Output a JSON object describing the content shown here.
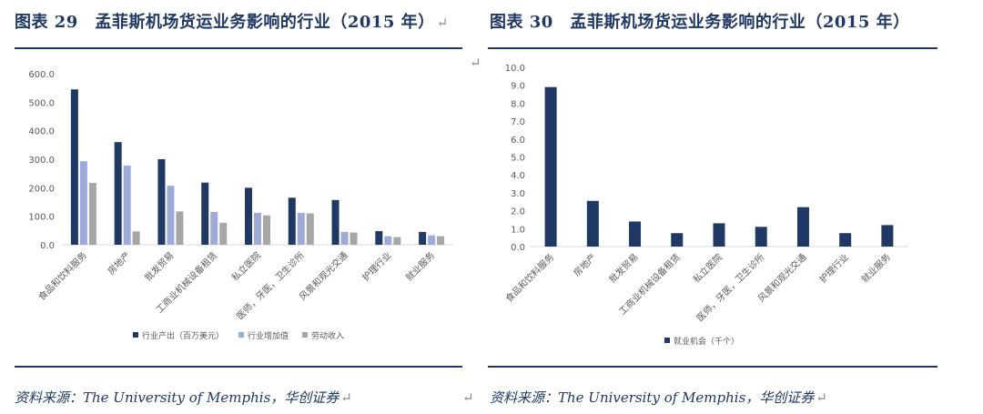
{
  "left_panel": {
    "figure_title": "图表 29　孟菲斯机场货运业务影响的行业（2015 年）",
    "return_mark": "↵",
    "source_note": "资料来源：The University of Memphis，华创证券",
    "source_return_mark": "↵"
  },
  "right_panel": {
    "figure_title": "图表 30　孟菲斯机场货运业务影响的行业（2015 年）",
    "source_note": "资料来源：The University of Memphis，华创证券",
    "source_return_mark": "↵"
  },
  "mid_return_mark": "↵",
  "between_return_mark": "↵",
  "colors": {
    "title_blue": "#1f3864",
    "series_dark": "#1f3864",
    "series_light": "#9dabd9",
    "series_gray": "#a6a6a6",
    "axis_text": "#595959"
  },
  "chart_data": [
    {
      "type": "bar",
      "categories": [
        "食品和饮料服务",
        "房地产",
        "批发贸易",
        "工商业机械设备租赁",
        "私立医院",
        "医师，牙医，卫生诊所",
        "风景和观光交通",
        "护理行业",
        "就业服务"
      ],
      "series": [
        {
          "name": "行业产出（百万美元）",
          "values": [
            545,
            360,
            300,
            218,
            200,
            165,
            157,
            48,
            45
          ]
        },
        {
          "name": "行业增加值",
          "values": [
            293,
            278,
            207,
            115,
            112,
            112,
            45,
            30,
            33
          ]
        },
        {
          "name": "劳动收入",
          "values": [
            217,
            47,
            117,
            77,
            103,
            110,
            43,
            27,
            30
          ]
        }
      ],
      "y_ticks": [
        "0.0",
        "100.0",
        "200.0",
        "300.0",
        "400.0",
        "500.0",
        "600.0"
      ],
      "ylim": [
        0,
        600
      ],
      "grid": false,
      "legend_position": "bottom"
    },
    {
      "type": "bar",
      "categories": [
        "食品和饮料服务",
        "房地产",
        "批发贸易",
        "工商业机械设备租赁",
        "私立医院",
        "医师，牙医，卫生诊所",
        "风景和观光交通",
        "护理行业",
        "就业服务"
      ],
      "series": [
        {
          "name": "就业机会（千个）",
          "values": [
            8.9,
            2.55,
            1.4,
            0.75,
            1.3,
            1.1,
            2.2,
            0.75,
            1.2
          ]
        }
      ],
      "y_ticks": [
        "0.0",
        "1.0",
        "2.0",
        "3.0",
        "4.0",
        "5.0",
        "6.0",
        "7.0",
        "8.0",
        "9.0",
        "10.0"
      ],
      "ylim": [
        0,
        10
      ],
      "grid": false,
      "legend_position": "bottom"
    }
  ]
}
